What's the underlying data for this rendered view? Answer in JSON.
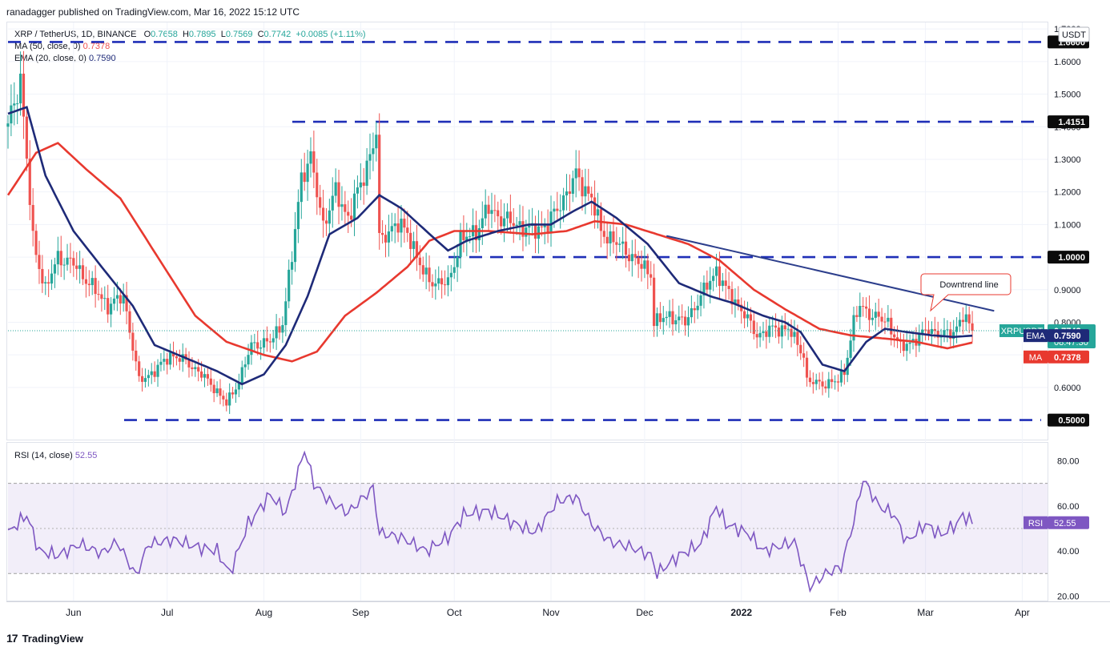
{
  "header": {
    "published": "ranadagger published on TradingView.com, Mar 16, 2022 15:12 UTC"
  },
  "legend": {
    "symbol": "XRP / TetherUS, 1D, BINANCE",
    "o_label": "O",
    "o": "0.7658",
    "h_label": "H",
    "h": "0.7895",
    "l_label": "L",
    "l": "0.7569",
    "c_label": "C",
    "c": "0.7742",
    "change": "+0.0085 (+1.11%)",
    "ma": "MA (50, close, 0)",
    "ma_val": "0.7378",
    "ema": "EMA (20, close, 0)",
    "ema_val": "0.7590",
    "rsi": "RSI (14, close)",
    "rsi_val": "52.55"
  },
  "footer": {
    "brand": "TradingView"
  },
  "colors": {
    "up": "#26a69a",
    "down": "#ef5350",
    "ema": "#1e2a78",
    "ma": "#e8392f",
    "level": "#1f2fb7",
    "rsi": "#7e57c2",
    "trend": "#2c3e8c"
  },
  "chart_data": {
    "type": "candlestick",
    "title": "XRP / TetherUS, 1D, BINANCE",
    "currency": "USDT",
    "y_range": [
      0.44,
      1.72
    ],
    "y_ticks": [
      "0.6000",
      "0.7000",
      "0.8000",
      "0.9000",
      "1.0000",
      "1.1000",
      "1.2000",
      "1.3000",
      "1.4000",
      "1.5000",
      "1.6000",
      "1.7000"
    ],
    "x_labels": [
      "Jun",
      "Jul",
      "Aug",
      "Sep",
      "Oct",
      "Nov",
      "Dec",
      "2022",
      "Feb",
      "Mar",
      "Apr"
    ],
    "horizontal_levels": [
      {
        "value": 1.66,
        "label": "1.6600"
      },
      {
        "value": 1.4151,
        "label": "1.4151"
      },
      {
        "value": 1.0,
        "label": "1.0000"
      },
      {
        "value": 0.5,
        "label": "0.5000"
      }
    ],
    "downtrend_line": {
      "start": [
        "2021-12-08",
        1.065
      ],
      "end": [
        "2022-03-23",
        0.835
      ],
      "annotation": "Downtrend line"
    },
    "last_price": {
      "symbol": "XRPUSDT",
      "value": "0.7742",
      "countdown": "08:47:30"
    },
    "ema_label": {
      "name": "EMA",
      "value": "0.7590"
    },
    "ma_label": {
      "name": "MA",
      "value": "0.7378"
    },
    "close_anchors": [
      [
        "2021-05-11",
        1.4
      ],
      [
        "2021-05-15",
        1.55
      ],
      [
        "2021-05-19",
        1.05
      ],
      [
        "2021-05-23",
        0.9
      ],
      [
        "2021-05-27",
        1.0
      ],
      [
        "2021-06-01",
        0.98
      ],
      [
        "2021-06-06",
        0.92
      ],
      [
        "2021-06-12",
        0.85
      ],
      [
        "2021-06-17",
        0.88
      ],
      [
        "2021-06-22",
        0.62
      ],
      [
        "2021-06-27",
        0.65
      ],
      [
        "2021-07-02",
        0.7
      ],
      [
        "2021-07-07",
        0.68
      ],
      [
        "2021-07-12",
        0.64
      ],
      [
        "2021-07-16",
        0.6
      ],
      [
        "2021-07-20",
        0.55
      ],
      [
        "2021-07-24",
        0.62
      ],
      [
        "2021-07-28",
        0.73
      ],
      [
        "2021-08-03",
        0.74
      ],
      [
        "2021-08-07",
        0.8
      ],
      [
        "2021-08-10",
        1.0
      ],
      [
        "2021-08-13",
        1.25
      ],
      [
        "2021-08-16",
        1.3
      ],
      [
        "2021-08-20",
        1.1
      ],
      [
        "2021-08-24",
        1.2
      ],
      [
        "2021-08-28",
        1.12
      ],
      [
        "2021-09-02",
        1.25
      ],
      [
        "2021-09-06",
        1.38
      ],
      [
        "2021-09-07",
        1.05
      ],
      [
        "2021-09-12",
        1.1
      ],
      [
        "2021-09-16",
        1.08
      ],
      [
        "2021-09-21",
        0.95
      ],
      [
        "2021-09-25",
        0.92
      ],
      [
        "2021-09-29",
        0.92
      ],
      [
        "2021-10-03",
        1.05
      ],
      [
        "2021-10-08",
        1.08
      ],
      [
        "2021-10-12",
        1.15
      ],
      [
        "2021-10-16",
        1.12
      ],
      [
        "2021-10-21",
        1.1
      ],
      [
        "2021-10-26",
        1.08
      ],
      [
        "2021-10-31",
        1.1
      ],
      [
        "2021-11-05",
        1.18
      ],
      [
        "2021-11-09",
        1.25
      ],
      [
        "2021-11-14",
        1.18
      ],
      [
        "2021-11-17",
        1.08
      ],
      [
        "2021-11-21",
        1.05
      ],
      [
        "2021-11-25",
        1.02
      ],
      [
        "2021-11-29",
        0.98
      ],
      [
        "2021-12-03",
        0.95
      ],
      [
        "2021-12-04",
        0.8
      ],
      [
        "2021-12-09",
        0.82
      ],
      [
        "2021-12-14",
        0.8
      ],
      [
        "2021-12-19",
        0.88
      ],
      [
        "2021-12-24",
        0.96
      ],
      [
        "2021-12-27",
        0.9
      ],
      [
        "2022-01-01",
        0.84
      ],
      [
        "2022-01-06",
        0.76
      ],
      [
        "2022-01-11",
        0.78
      ],
      [
        "2022-01-16",
        0.78
      ],
      [
        "2022-01-21",
        0.7
      ],
      [
        "2022-01-22",
        0.62
      ],
      [
        "2022-01-27",
        0.61
      ],
      [
        "2022-02-01",
        0.62
      ],
      [
        "2022-02-03",
        0.65
      ],
      [
        "2022-02-06",
        0.8
      ],
      [
        "2022-02-08",
        0.85
      ],
      [
        "2022-02-12",
        0.82
      ],
      [
        "2022-02-17",
        0.8
      ],
      [
        "2022-02-21",
        0.72
      ],
      [
        "2022-02-26",
        0.75
      ],
      [
        "2022-03-02",
        0.78
      ],
      [
        "2022-03-06",
        0.76
      ],
      [
        "2022-03-10",
        0.77
      ],
      [
        "2022-03-13",
        0.82
      ],
      [
        "2022-03-16",
        0.7742
      ]
    ],
    "ema20_anchors": [
      [
        "2021-05-11",
        1.44
      ],
      [
        "2021-05-17",
        1.46
      ],
      [
        "2021-05-23",
        1.25
      ],
      [
        "2021-06-01",
        1.08
      ],
      [
        "2021-06-10",
        0.97
      ],
      [
        "2021-06-20",
        0.85
      ],
      [
        "2021-06-27",
        0.73
      ],
      [
        "2021-07-07",
        0.69
      ],
      [
        "2021-07-17",
        0.65
      ],
      [
        "2021-07-25",
        0.61
      ],
      [
        "2021-08-01",
        0.64
      ],
      [
        "2021-08-08",
        0.73
      ],
      [
        "2021-08-15",
        0.88
      ],
      [
        "2021-08-22",
        1.07
      ],
      [
        "2021-08-31",
        1.12
      ],
      [
        "2021-09-07",
        1.19
      ],
      [
        "2021-09-14",
        1.15
      ],
      [
        "2021-09-22",
        1.08
      ],
      [
        "2021-09-29",
        1.02
      ],
      [
        "2021-10-05",
        1.05
      ],
      [
        "2021-10-15",
        1.08
      ],
      [
        "2021-10-25",
        1.1
      ],
      [
        "2021-11-01",
        1.1
      ],
      [
        "2021-11-08",
        1.14
      ],
      [
        "2021-11-14",
        1.17
      ],
      [
        "2021-11-22",
        1.12
      ],
      [
        "2021-12-02",
        1.04
      ],
      [
        "2021-12-12",
        0.92
      ],
      [
        "2021-12-22",
        0.88
      ],
      [
        "2021-12-29",
        0.86
      ],
      [
        "2022-01-08",
        0.82
      ],
      [
        "2022-01-15",
        0.8
      ],
      [
        "2022-01-20",
        0.77
      ],
      [
        "2022-01-27",
        0.67
      ],
      [
        "2022-02-03",
        0.65
      ],
      [
        "2022-02-10",
        0.74
      ],
      [
        "2022-02-16",
        0.78
      ],
      [
        "2022-02-23",
        0.77
      ],
      [
        "2022-03-03",
        0.76
      ],
      [
        "2022-03-10",
        0.755
      ],
      [
        "2022-03-16",
        0.759
      ]
    ],
    "ma50_anchors": [
      [
        "2021-05-11",
        1.19
      ],
      [
        "2021-05-20",
        1.32
      ],
      [
        "2021-05-27",
        1.35
      ],
      [
        "2021-06-05",
        1.27
      ],
      [
        "2021-06-16",
        1.18
      ],
      [
        "2021-06-28",
        1.0
      ],
      [
        "2021-07-10",
        0.82
      ],
      [
        "2021-07-20",
        0.74
      ],
      [
        "2021-08-01",
        0.7
      ],
      [
        "2021-08-10",
        0.68
      ],
      [
        "2021-08-18",
        0.71
      ],
      [
        "2021-08-27",
        0.82
      ],
      [
        "2021-09-06",
        0.89
      ],
      [
        "2021-09-16",
        0.97
      ],
      [
        "2021-09-23",
        1.05
      ],
      [
        "2021-10-01",
        1.08
      ],
      [
        "2021-10-12",
        1.08
      ],
      [
        "2021-10-26",
        1.07
      ],
      [
        "2021-11-06",
        1.08
      ],
      [
        "2021-11-15",
        1.11
      ],
      [
        "2021-11-25",
        1.1
      ],
      [
        "2021-12-05",
        1.07
      ],
      [
        "2021-12-15",
        1.04
      ],
      [
        "2021-12-25",
        0.99
      ],
      [
        "2022-01-05",
        0.9
      ],
      [
        "2022-01-15",
        0.84
      ],
      [
        "2022-01-26",
        0.78
      ],
      [
        "2022-02-05",
        0.76
      ],
      [
        "2022-02-16",
        0.75
      ],
      [
        "2022-02-26",
        0.74
      ],
      [
        "2022-03-08",
        0.72
      ],
      [
        "2022-03-16",
        0.7378
      ]
    ],
    "rsi": {
      "title": "RSI (14, close)",
      "last": "52.55",
      "y_range": [
        18,
        88
      ],
      "y_ticks": [
        "20.00",
        "40.00",
        "60.00",
        "80.00"
      ],
      "band": [
        30,
        70
      ],
      "anchors": [
        [
          "2021-05-11",
          48
        ],
        [
          "2021-05-17",
          56
        ],
        [
          "2021-05-21",
          40
        ],
        [
          "2021-05-27",
          38
        ],
        [
          "2021-06-03",
          43
        ],
        [
          "2021-06-10",
          39
        ],
        [
          "2021-06-15",
          44
        ],
        [
          "2021-06-21",
          29
        ],
        [
          "2021-06-25",
          43
        ],
        [
          "2021-07-03",
          45
        ],
        [
          "2021-07-10",
          42
        ],
        [
          "2021-07-17",
          40
        ],
        [
          "2021-07-21",
          30
        ],
        [
          "2021-07-27",
          52
        ],
        [
          "2021-08-03",
          65
        ],
        [
          "2021-08-08",
          57
        ],
        [
          "2021-08-12",
          75
        ],
        [
          "2021-08-14",
          85
        ],
        [
          "2021-08-17",
          70
        ],
        [
          "2021-08-22",
          62
        ],
        [
          "2021-08-28",
          57
        ],
        [
          "2021-09-05",
          68
        ],
        [
          "2021-09-07",
          48
        ],
        [
          "2021-09-14",
          46
        ],
        [
          "2021-09-22",
          40
        ],
        [
          "2021-09-29",
          46
        ],
        [
          "2021-10-04",
          56
        ],
        [
          "2021-10-12",
          58
        ],
        [
          "2021-10-19",
          53
        ],
        [
          "2021-10-27",
          48
        ],
        [
          "2021-11-03",
          62
        ],
        [
          "2021-11-09",
          64
        ],
        [
          "2021-11-14",
          52
        ],
        [
          "2021-11-20",
          44
        ],
        [
          "2021-11-26",
          42
        ],
        [
          "2021-12-03",
          38
        ],
        [
          "2021-12-05",
          30
        ],
        [
          "2021-12-12",
          38
        ],
        [
          "2021-12-19",
          43
        ],
        [
          "2021-12-24",
          60
        ],
        [
          "2021-12-27",
          52
        ],
        [
          "2022-01-03",
          48
        ],
        [
          "2022-01-08",
          40
        ],
        [
          "2022-01-13",
          42
        ],
        [
          "2022-01-18",
          44
        ],
        [
          "2022-01-21",
          32
        ],
        [
          "2022-01-23",
          24
        ],
        [
          "2022-01-28",
          30
        ],
        [
          "2022-02-02",
          33
        ],
        [
          "2022-02-06",
          53
        ],
        [
          "2022-02-09",
          72
        ],
        [
          "2022-02-14",
          60
        ],
        [
          "2022-02-19",
          56
        ],
        [
          "2022-02-23",
          44
        ],
        [
          "2022-03-01",
          52
        ],
        [
          "2022-03-06",
          47
        ],
        [
          "2022-03-11",
          52
        ],
        [
          "2022-03-13",
          56
        ],
        [
          "2022-03-16",
          52.55
        ]
      ]
    }
  }
}
